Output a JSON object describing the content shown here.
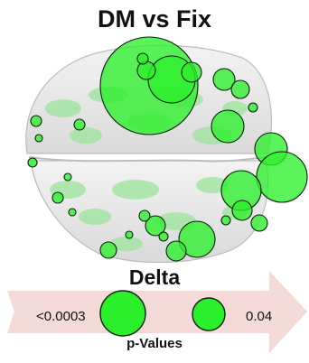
{
  "figure": {
    "title": "DM vs Fix",
    "band": "Delta",
    "legend": {
      "left_label": "<0.0003",
      "right_label": "0.04",
      "axis_label": "p-Values"
    }
  },
  "colors": {
    "node_fill": "#2bef2b",
    "node_stroke": "#0b1f0b",
    "brain_fill": "#e6e6e6",
    "brain_edge": "#b9b9b9",
    "cortex_patch": "#9be59b",
    "arrow_fill": "#f4d9d9"
  }
}
